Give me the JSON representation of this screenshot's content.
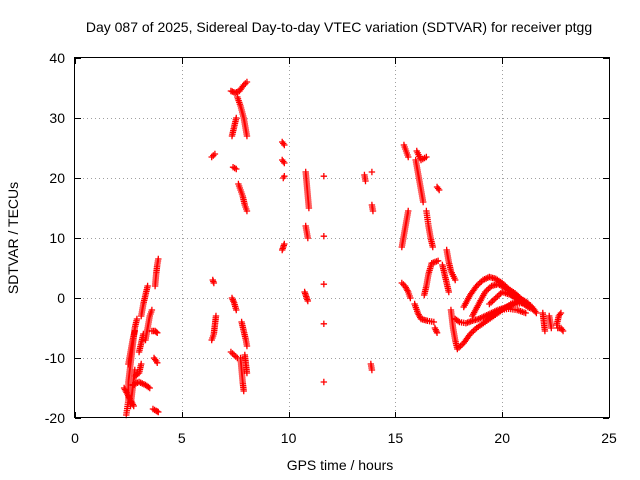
{
  "chart_data": {
    "type": "scatter",
    "title": "Day 087 of 2025, Sidereal Day-to-day VTEC variation (SDTVAR) for receiver ptgg",
    "xlabel": "GPS time / hours",
    "ylabel": "SDTVAR / TECUs",
    "xlim": [
      0,
      25
    ],
    "ylim": [
      -20,
      40
    ],
    "xticks": [
      0,
      5,
      10,
      15,
      20,
      25
    ],
    "yticks": [
      -20,
      -10,
      0,
      10,
      20,
      30,
      40
    ],
    "xtick_labels": [
      "0",
      "5",
      "10",
      "15",
      "20",
      "25"
    ],
    "ytick_labels": [
      "-20",
      "-10",
      "0",
      "10",
      "20",
      "30",
      "40"
    ],
    "grid": true,
    "marker": "+",
    "color": "#ff0000",
    "series": [
      {
        "name": "SDTVAR",
        "tracks": [
          [
            [
              2.4,
              -19.5
            ],
            [
              2.5,
              -17
            ],
            [
              2.5,
              -14
            ],
            [
              2.6,
              -11
            ],
            [
              2.7,
              -8
            ],
            [
              2.8,
              -5
            ],
            [
              2.9,
              -3.5
            ]
          ],
          [
            [
              2.5,
              -11
            ],
            [
              2.6,
              -9
            ],
            [
              2.7,
              -7
            ],
            [
              2.8,
              -5.5
            ]
          ],
          [
            [
              2.3,
              -15
            ],
            [
              2.45,
              -16
            ],
            [
              2.6,
              -17
            ],
            [
              2.75,
              -18
            ]
          ],
          [
            [
              2.6,
              -18
            ],
            [
              2.7,
              -15
            ],
            [
              2.8,
              -12
            ]
          ],
          [
            [
              2.7,
              -14.5
            ],
            [
              3.0,
              -14
            ],
            [
              3.3,
              -14.5
            ],
            [
              3.5,
              -15
            ]
          ],
          [
            [
              2.8,
              -13
            ],
            [
              3.0,
              -12.5
            ],
            [
              3.1,
              -11
            ]
          ],
          [
            [
              3.0,
              -9
            ],
            [
              3.1,
              -7.5
            ],
            [
              3.2,
              -6
            ]
          ],
          [
            [
              3.1,
              -3
            ],
            [
              3.2,
              -1
            ],
            [
              3.3,
              0.5
            ],
            [
              3.4,
              2
            ]
          ],
          [
            [
              3.3,
              -7
            ],
            [
              3.4,
              -5
            ],
            [
              3.5,
              -3
            ],
            [
              3.6,
              -2
            ]
          ],
          [
            [
              3.6,
              -5.5
            ],
            [
              3.75,
              -5.5
            ],
            [
              3.85,
              -5.8
            ]
          ],
          [
            [
              3.7,
              -10
            ],
            [
              3.8,
              -10.5
            ],
            [
              3.85,
              -10.8
            ]
          ],
          [
            [
              3.65,
              -18.5
            ],
            [
              3.8,
              -18.8
            ],
            [
              3.9,
              -19
            ]
          ],
          [
            [
              3.75,
              2
            ],
            [
              3.8,
              4
            ],
            [
              3.85,
              5.5
            ],
            [
              3.9,
              6.5
            ]
          ],
          [
            [
              6.45,
              3
            ],
            [
              6.5,
              2.5
            ]
          ],
          [
            [
              6.4,
              -7
            ],
            [
              6.5,
              -6
            ],
            [
              6.55,
              -4.5
            ],
            [
              6.6,
              -3
            ]
          ],
          [
            [
              6.4,
              23.5
            ],
            [
              6.55,
              24
            ]
          ],
          [
            [
              7.3,
              -9
            ],
            [
              7.45,
              -9.5
            ],
            [
              7.6,
              -10
            ]
          ],
          [
            [
              7.35,
              0
            ],
            [
              7.45,
              -0.8
            ],
            [
              7.55,
              -2
            ]
          ],
          [
            [
              7.4,
              21.8
            ],
            [
              7.55,
              21.5
            ]
          ],
          [
            [
              7.35,
              27
            ],
            [
              7.45,
              28.5
            ],
            [
              7.55,
              30
            ]
          ],
          [
            [
              7.3,
              34.5
            ],
            [
              7.5,
              34.2
            ],
            [
              7.7,
              34.5
            ],
            [
              7.9,
              35.5
            ],
            [
              8.05,
              36
            ]
          ],
          [
            [
              7.6,
              33.5
            ],
            [
              7.75,
              32
            ],
            [
              7.9,
              30
            ],
            [
              8.0,
              28
            ],
            [
              8.05,
              27
            ]
          ],
          [
            [
              7.65,
              19
            ],
            [
              7.75,
              18
            ],
            [
              7.85,
              17
            ],
            [
              7.95,
              15.5
            ],
            [
              8.05,
              14.5
            ]
          ],
          [
            [
              7.8,
              -4
            ],
            [
              7.9,
              -5.5
            ],
            [
              8.0,
              -7
            ],
            [
              8.05,
              -8
            ]
          ],
          [
            [
              7.75,
              -10
            ],
            [
              7.8,
              -12
            ],
            [
              7.85,
              -14
            ],
            [
              7.9,
              -15.5
            ]
          ],
          [
            [
              7.95,
              -9.5
            ],
            [
              8.0,
              -11
            ],
            [
              8.05,
              -12.5
            ]
          ],
          [
            [
              9.7,
              26
            ],
            [
              9.8,
              25.5
            ]
          ],
          [
            [
              9.7,
              23
            ],
            [
              9.8,
              22.5
            ]
          ],
          [
            [
              9.75,
              20
            ],
            [
              9.8,
              20.3
            ]
          ],
          [
            [
              9.7,
              8
            ],
            [
              9.75,
              8.5
            ],
            [
              9.8,
              9
            ]
          ],
          [
            [
              10.8,
              21
            ],
            [
              10.85,
              19
            ],
            [
              10.9,
              17
            ],
            [
              10.95,
              15
            ]
          ],
          [
            [
              10.8,
              12
            ],
            [
              10.85,
              11
            ],
            [
              10.9,
              10
            ]
          ],
          [
            [
              10.75,
              1
            ],
            [
              10.8,
              0.5
            ],
            [
              10.85,
              0
            ],
            [
              10.9,
              -0.5
            ]
          ],
          [
            [
              11.65,
              20.3
            ]
          ],
          [
            [
              11.65,
              10.3
            ]
          ],
          [
            [
              11.65,
              2.3
            ]
          ],
          [
            [
              11.65,
              -4.3
            ]
          ],
          [
            [
              11.65,
              -14
            ]
          ],
          [
            [
              13.55,
              20.5
            ],
            [
              13.6,
              19.5
            ]
          ],
          [
            [
              13.9,
              21
            ]
          ],
          [
            [
              13.9,
              15.5
            ],
            [
              13.95,
              14.5
            ]
          ],
          [
            [
              13.85,
              -11
            ],
            [
              13.9,
              -12
            ]
          ],
          [
            [
              15.4,
              25.5
            ],
            [
              15.5,
              24.5
            ],
            [
              15.6,
              23.5
            ]
          ],
          [
            [
              15.3,
              8.5
            ],
            [
              15.4,
              10.5
            ],
            [
              15.5,
              12.5
            ],
            [
              15.6,
              14.5
            ]
          ],
          [
            [
              15.3,
              2.5
            ],
            [
              15.45,
              2
            ],
            [
              15.6,
              1
            ],
            [
              15.7,
              0
            ]
          ],
          [
            [
              15.95,
              23
            ],
            [
              16.05,
              21
            ],
            [
              16.15,
              19
            ],
            [
              16.25,
              17
            ],
            [
              16.3,
              16
            ]
          ],
          [
            [
              16.0,
              24.5
            ],
            [
              16.2,
              23
            ],
            [
              16.45,
              23.5
            ]
          ],
          [
            [
              15.9,
              -1
            ],
            [
              16.05,
              -2.5
            ],
            [
              16.2,
              -3.5
            ],
            [
              16.5,
              -3.8
            ],
            [
              16.8,
              -4
            ]
          ],
          [
            [
              16.35,
              0.5
            ],
            [
              16.45,
              2
            ],
            [
              16.55,
              4
            ],
            [
              16.7,
              5.8
            ],
            [
              17.0,
              6.2
            ]
          ],
          [
            [
              16.45,
              14.5
            ],
            [
              16.55,
              12
            ],
            [
              16.65,
              10
            ],
            [
              16.75,
              8.5
            ]
          ],
          [
            [
              16.95,
              18.5
            ],
            [
              17.05,
              18
            ]
          ],
          [
            [
              16.85,
              -5
            ],
            [
              16.95,
              -5.8
            ]
          ],
          [
            [
              17.2,
              5.5
            ],
            [
              17.3,
              4
            ],
            [
              17.4,
              2.5
            ],
            [
              17.5,
              1
            ]
          ],
          [
            [
              17.4,
              8
            ],
            [
              17.5,
              6
            ],
            [
              17.6,
              4.5
            ],
            [
              17.8,
              3
            ]
          ],
          [
            [
              17.6,
              -2
            ],
            [
              17.7,
              -5
            ],
            [
              17.8,
              -7
            ],
            [
              17.9,
              -8.5
            ],
            [
              18.2,
              -7.5
            ],
            [
              18.5,
              -6
            ],
            [
              18.8,
              -5
            ],
            [
              19.2,
              -4
            ],
            [
              19.6,
              -3
            ],
            [
              20.0,
              -2
            ],
            [
              20.4,
              -1
            ],
            [
              20.8,
              -0.5
            ]
          ],
          [
            [
              17.8,
              -3.5
            ],
            [
              18.0,
              -4
            ],
            [
              18.3,
              -4.2
            ],
            [
              18.6,
              -3.8
            ],
            [
              18.9,
              -3.5
            ],
            [
              19.2,
              -3
            ],
            [
              19.5,
              -2.5
            ],
            [
              19.8,
              -2
            ],
            [
              20.2,
              -1.5
            ],
            [
              20.6,
              -1
            ],
            [
              21.0,
              -0.8
            ]
          ],
          [
            [
              18.2,
              -1.5
            ],
            [
              18.5,
              0.5
            ],
            [
              18.8,
              2
            ],
            [
              19.1,
              3
            ],
            [
              19.4,
              3.5
            ],
            [
              19.7,
              3.2
            ],
            [
              20.0,
              2.5
            ],
            [
              20.3,
              1.5
            ],
            [
              20.6,
              0.8
            ],
            [
              20.9,
              -0.2
            ],
            [
              21.2,
              -0.8
            ]
          ],
          [
            [
              18.6,
              -3
            ],
            [
              18.9,
              -1
            ],
            [
              19.2,
              1
            ],
            [
              19.5,
              2
            ],
            [
              19.8,
              2.3
            ],
            [
              20.1,
              1.8
            ],
            [
              20.4,
              1
            ],
            [
              20.7,
              0.2
            ],
            [
              21.0,
              -0.5
            ]
          ],
          [
            [
              19.4,
              -1
            ],
            [
              19.7,
              0
            ],
            [
              20.0,
              1
            ],
            [
              20.4,
              0.5
            ],
            [
              20.8,
              -0.5
            ],
            [
              21.2,
              -1.5
            ],
            [
              21.5,
              -2
            ]
          ],
          [
            [
              19.3,
              -3.5
            ],
            [
              19.6,
              -2.8
            ],
            [
              19.9,
              -2
            ],
            [
              20.3,
              -1.8
            ],
            [
              20.7,
              -2
            ],
            [
              21.1,
              -2.5
            ]
          ],
          [
            [
              21.2,
              -1
            ],
            [
              21.4,
              -1.5
            ],
            [
              21.5,
              -2
            ],
            [
              21.6,
              -2.5
            ]
          ],
          [
            [
              21.9,
              -2.5
            ],
            [
              21.95,
              -4
            ],
            [
              22.0,
              -5.5
            ]
          ],
          [
            [
              22.2,
              -3
            ],
            [
              22.25,
              -4
            ],
            [
              22.3,
              -5
            ]
          ],
          [
            [
              22.55,
              -4.5
            ],
            [
              22.65,
              -3
            ],
            [
              22.75,
              -2.5
            ]
          ],
          [
            [
              22.6,
              -5
            ],
            [
              22.75,
              -5
            ],
            [
              22.85,
              -5.5
            ]
          ]
        ]
      }
    ]
  }
}
